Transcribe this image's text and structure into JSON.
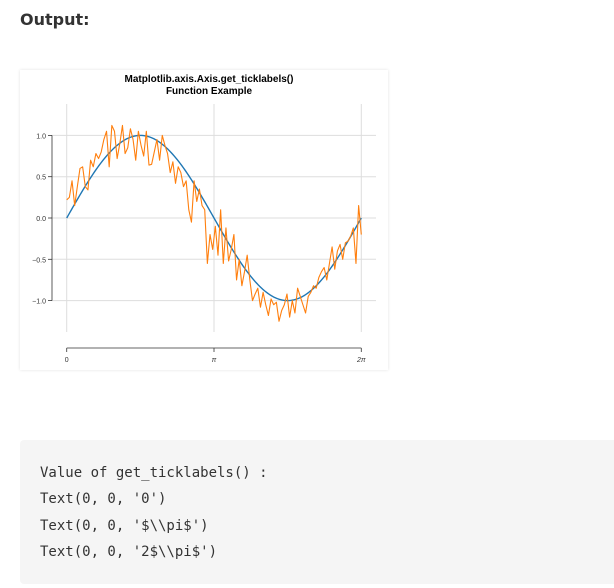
{
  "heading": "Output:",
  "code_lines": [
    "Value of get_ticklabels() :",
    "Text(0, 0, '0')",
    "Text(0, 0, '$\\\\pi$')",
    "Text(0, 0, '2$\\\\pi$')"
  ],
  "chart_data": {
    "type": "line",
    "title": "Matplotlib.axis.Axis.get_ticklabels()\nFunction Example",
    "xlabel": "",
    "ylabel": "",
    "xlim": [
      -0.314,
      6.597
    ],
    "ylim": [
      -1.38,
      1.38
    ],
    "x_ticks": [
      0,
      3.14159,
      6.28319
    ],
    "x_tick_labels": [
      "0",
      "π",
      "2π"
    ],
    "y_ticks": [
      1.0,
      0.5,
      0.0,
      -0.5,
      -1.0
    ],
    "y_tick_labels": [
      "1.0",
      "0.5",
      "0.0",
      "−0.5",
      "−1.0"
    ],
    "grid": true,
    "colors": {
      "smooth": "#1f77b4",
      "noisy": "#ff7f0e"
    },
    "series": [
      {
        "kind": "smooth",
        "function": "sin(x)",
        "x_range": [
          0,
          6.28319
        ]
      },
      {
        "kind": "noisy",
        "x_range": [
          0,
          6.28319
        ],
        "values": [
          0.22,
          0.25,
          0.45,
          0.15,
          0.38,
          0.6,
          0.62,
          0.38,
          0.34,
          0.7,
          0.62,
          0.78,
          0.72,
          0.8,
          0.95,
          1.05,
          0.62,
          1.12,
          1.05,
          0.72,
          0.9,
          1.12,
          0.78,
          0.85,
          1.08,
          0.95,
          0.7,
          1.05,
          0.88,
          0.75,
          1.05,
          0.64,
          0.65,
          0.8,
          0.95,
          0.7,
          1.0,
          0.88,
          0.78,
          0.55,
          0.68,
          0.42,
          0.62,
          0.55,
          0.38,
          0.45,
          0.1,
          -0.05,
          0.45,
          0.2,
          0.35,
          0.15,
          0.1,
          -0.55,
          -0.2,
          -0.38,
          -0.1,
          -0.45,
          0.1,
          -0.55,
          -0.12,
          -0.52,
          -0.38,
          -0.2,
          -0.75,
          -0.5,
          -0.82,
          -0.65,
          -0.45,
          -0.75,
          -1.0,
          -0.92,
          -0.85,
          -1.08,
          -0.9,
          -1.05,
          -1.18,
          -0.98,
          -1.05,
          -1.02,
          -1.25,
          -1.12,
          -1.05,
          -0.92,
          -1.2,
          -1.0,
          -1.15,
          -0.85,
          -0.95,
          -1.05,
          -1.15,
          -0.95,
          -0.9,
          -0.82,
          -0.85,
          -0.72,
          -0.65,
          -0.6,
          -0.75,
          -0.55,
          -0.35,
          -0.62,
          -0.4,
          -0.32,
          -0.5,
          -0.3,
          -0.28,
          -0.22,
          -0.12,
          -0.55,
          0.15,
          -0.2
        ]
      }
    ]
  }
}
